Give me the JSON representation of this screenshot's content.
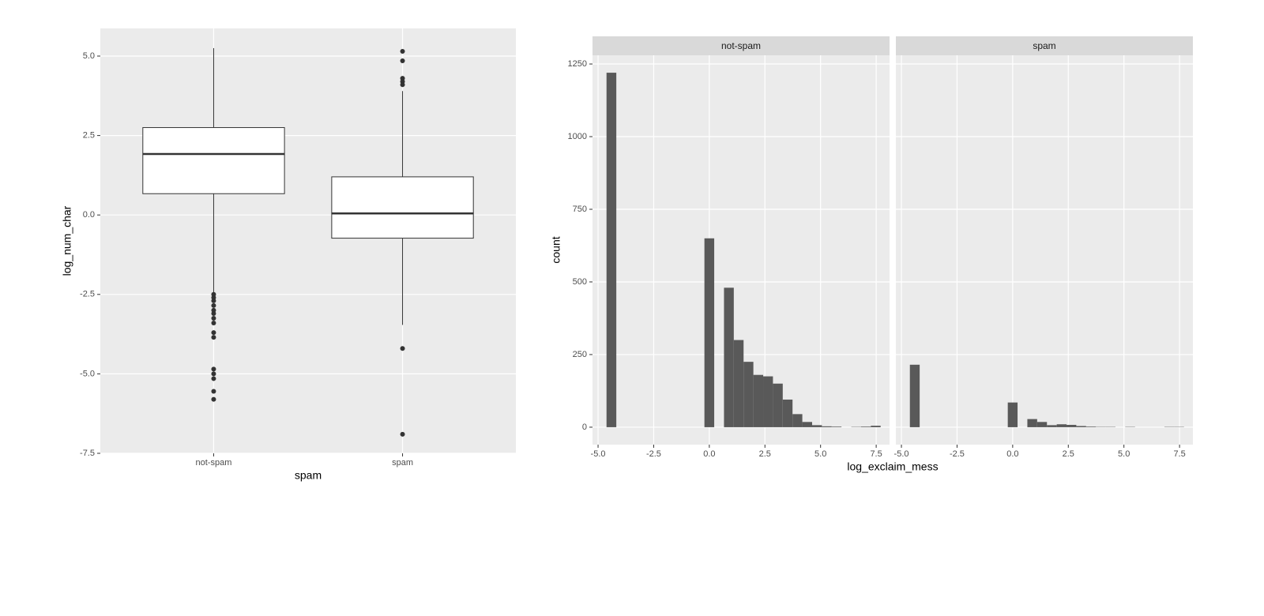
{
  "chart_data": [
    {
      "type": "box",
      "xlabel": "spam",
      "ylabel": "log_num_char",
      "categories": [
        "not-spam",
        "spam"
      ],
      "boxes": [
        {
          "whislo": -2.45,
          "q1": 0.67,
          "med": 1.92,
          "q3": 2.75,
          "whishi": 5.25,
          "outliers": [
            -2.5,
            -2.6,
            -2.7,
            -2.85,
            -3.0,
            -3.1,
            -3.25,
            -3.4,
            -3.7,
            -3.85,
            -4.85,
            -5.0,
            -5.15,
            -5.55,
            -5.8
          ]
        },
        {
          "whislo": -3.46,
          "q1": -0.73,
          "med": 0.05,
          "q3": 1.2,
          "whishi": 3.9,
          "outliers": [
            5.15,
            4.85,
            4.3,
            4.2,
            4.1,
            -4.2,
            -6.9
          ]
        }
      ],
      "ylim": [
        -7.5,
        5.87
      ],
      "yticks": [
        -7.5,
        {
          "value": -5,
          "label": "-5.0"
        },
        -2.5,
        {
          "value": 0,
          "label": "0.0"
        },
        2.5,
        {
          "value": 5,
          "label": "5.0"
        }
      ],
      "color": "#333333",
      "grid": true
    },
    {
      "type": "histogram",
      "xlabel": "log_exclaim_mess",
      "ylabel": "count",
      "bins": [
        -4.62,
        -4.18,
        -3.74,
        -3.3,
        -2.86,
        -2.42,
        -1.98,
        -1.54,
        -1.1,
        -0.66,
        -0.22,
        0.22,
        0.66,
        1.1,
        1.54,
        1.98,
        2.42,
        2.86,
        3.3,
        3.74,
        4.18,
        4.62,
        5.06,
        5.5,
        5.94,
        6.38,
        6.82,
        7.26,
        7.7
      ],
      "facets": [
        {
          "name": "not-spam",
          "values": [
            1220,
            0,
            0,
            0,
            0,
            0,
            0,
            0,
            0,
            0,
            650,
            0,
            480,
            300,
            225,
            180,
            175,
            150,
            95,
            45,
            18,
            7,
            3,
            2,
            0,
            1,
            2,
            5
          ]
        },
        {
          "name": "spam",
          "values": [
            215,
            0,
            0,
            0,
            0,
            0,
            0,
            0,
            0,
            0,
            85,
            0,
            28,
            18,
            7,
            10,
            8,
            4,
            2,
            1,
            1,
            0,
            1,
            0,
            0,
            0,
            1,
            1
          ]
        }
      ],
      "xlim": [
        -5.25,
        8.1
      ],
      "ylim": [
        -60,
        1280
      ],
      "xticks": [
        {
          "value": -5,
          "label": "-5.0"
        },
        -2.5,
        {
          "value": 0,
          "label": "0.0"
        },
        2.5,
        {
          "value": 5,
          "label": "5.0"
        },
        7.5
      ],
      "yticks": [
        0,
        250,
        500,
        750,
        1000,
        1250
      ],
      "color": "#595959",
      "grid": true
    }
  ]
}
